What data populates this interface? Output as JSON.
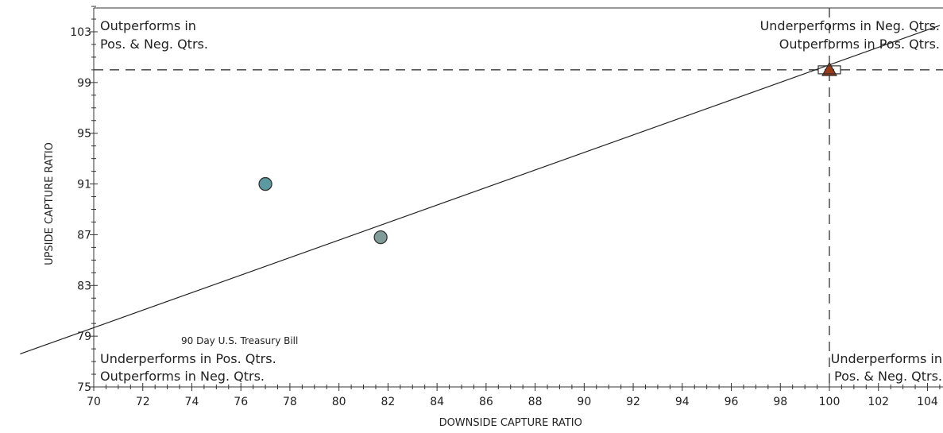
{
  "chart_data": {
    "type": "scatter",
    "xlabel": "DOWNSIDE CAPTURE RATIO",
    "ylabel": "UPSIDE CAPTURE RATIO",
    "xlim": [
      70,
      104.5
    ],
    "ylim": [
      75,
      106
    ],
    "x_ticks": [
      70,
      72,
      74,
      76,
      78,
      80,
      82,
      84,
      86,
      88,
      90,
      92,
      94,
      96,
      98,
      100,
      102,
      104
    ],
    "y_ticks": [
      75,
      79,
      83,
      87,
      91,
      95,
      99,
      103
    ],
    "grid": false,
    "reference_lines": {
      "x": 100,
      "y": 100
    },
    "regression_line": {
      "start": [
        67,
        77.6
      ],
      "end": [
        104.5,
        103.5
      ]
    },
    "quadrant_labels": {
      "top_left": [
        "Outperforms in",
        "Pos. & Neg. Qtrs."
      ],
      "top_right": [
        "Underperforms in Neg. Qtrs.",
        "Outperforms in Pos. Qtrs."
      ],
      "bottom_left": [
        "Underperforms in Pos. Qtrs.",
        "Outperforms in Neg. Qtrs."
      ],
      "bottom_right": [
        "Underperforms in",
        "Pos. & Neg. Qtrs."
      ]
    },
    "annotation": "90 Day U.S. Treasury Bill",
    "points": [
      {
        "x": 77.0,
        "y": 91.0,
        "marker": "circle",
        "color": "#5b9aa0"
      },
      {
        "x": 81.7,
        "y": 86.8,
        "marker": "circle",
        "color": "#7f9c98"
      },
      {
        "x": 100.0,
        "y": 100.0,
        "marker": "triangle",
        "color": "#9b3a17"
      },
      {
        "x": 100.0,
        "y": 100.0,
        "marker": "square",
        "color": "#ffffff"
      }
    ]
  }
}
